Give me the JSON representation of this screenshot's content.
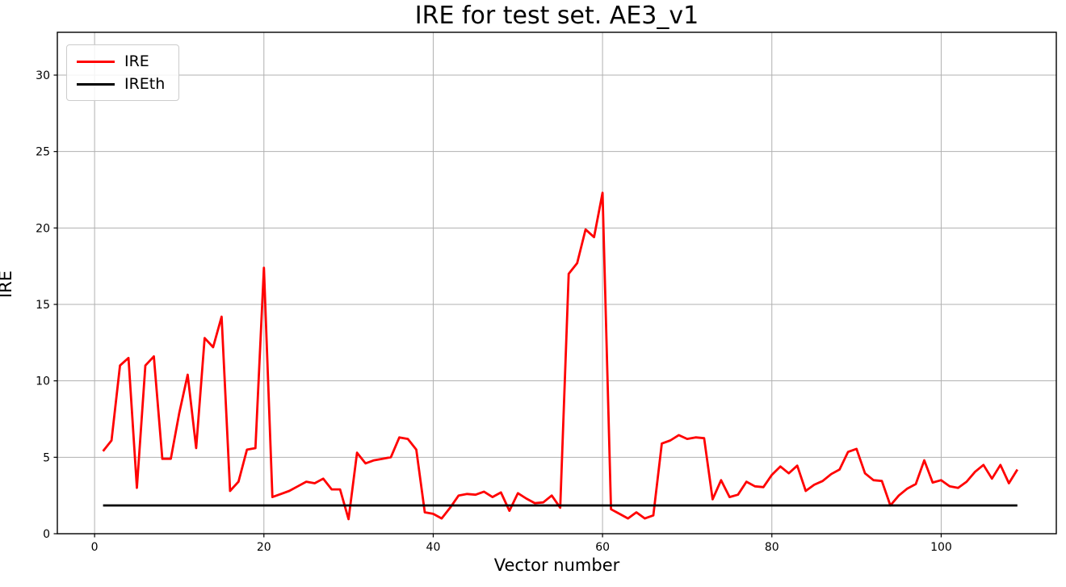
{
  "figure": {
    "title": "IRE for test set. AE3_v1",
    "xlabel": "Vector number",
    "ylabel": "IRE",
    "background_color": "#ffffff",
    "spine_color": "#000000",
    "tick_label_color": "#000000"
  },
  "legend": {
    "position": "upper-left",
    "entries": [
      {
        "label": "IRE",
        "color": "#ff0000"
      },
      {
        "label": "IREth",
        "color": "#000000"
      }
    ]
  },
  "chart_data": {
    "type": "line",
    "title": "IRE for test set. AE3_v1",
    "xlabel": "Vector number",
    "ylabel": "IRE",
    "xlim": [
      -4.4,
      113.6
    ],
    "ylim": [
      0,
      32.8
    ],
    "x_ticks": [
      0,
      20,
      40,
      60,
      80,
      100
    ],
    "y_ticks": [
      0,
      5,
      10,
      15,
      20,
      25,
      30
    ],
    "grid": true,
    "grid_color": "#b0b0b0",
    "legend_position": "upper-left",
    "series": [
      {
        "name": "IRE",
        "color": "#ff0000",
        "linewidth": 2.8,
        "x_start": 1,
        "values": [
          5.4,
          6.1,
          11.0,
          11.5,
          3.0,
          11.0,
          11.6,
          4.9,
          4.9,
          7.9,
          10.4,
          5.6,
          12.8,
          12.2,
          14.2,
          2.8,
          3.4,
          5.5,
          5.6,
          17.4,
          2.4,
          2.6,
          2.8,
          3.1,
          3.4,
          3.3,
          3.6,
          2.9,
          2.9,
          0.95,
          5.3,
          4.6,
          4.8,
          4.9,
          5.0,
          6.3,
          6.2,
          5.5,
          1.4,
          1.3,
          1.0,
          1.7,
          2.5,
          2.6,
          2.55,
          2.75,
          2.4,
          2.7,
          1.5,
          2.65,
          2.3,
          2.0,
          2.05,
          2.5,
          1.7,
          17.0,
          17.7,
          19.9,
          19.4,
          22.3,
          1.6,
          1.3,
          1.0,
          1.4,
          1.0,
          1.2,
          5.9,
          6.1,
          6.45,
          6.2,
          6.3,
          6.25,
          2.25,
          3.5,
          2.4,
          2.55,
          3.4,
          3.1,
          3.05,
          3.85,
          4.4,
          3.95,
          4.45,
          2.8,
          3.2,
          3.45,
          3.9,
          4.2,
          5.35,
          5.55,
          3.95,
          3.5,
          3.45,
          1.85,
          2.5,
          2.95,
          3.25,
          4.8,
          3.35,
          3.5,
          3.1,
          3.0,
          3.4,
          4.05,
          4.5,
          3.6,
          4.5,
          3.3,
          4.2
        ]
      },
      {
        "name": "IREth",
        "color": "#000000",
        "linewidth": 2.8,
        "constant_value": 1.85,
        "x_range": [
          1,
          109
        ]
      }
    ]
  }
}
